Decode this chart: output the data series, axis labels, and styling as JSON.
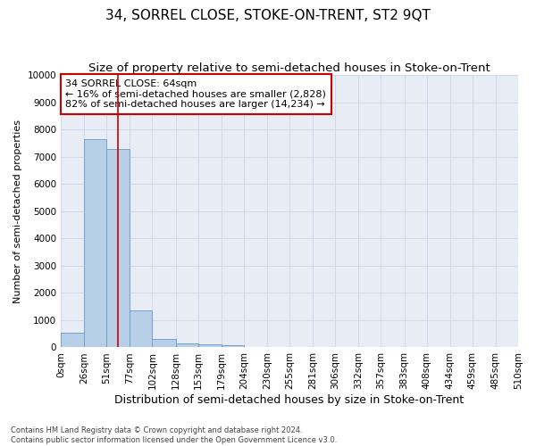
{
  "title": "34, SORREL CLOSE, STOKE-ON-TRENT, ST2 9QT",
  "subtitle": "Size of property relative to semi-detached houses in Stoke-on-Trent",
  "xlabel": "Distribution of semi-detached houses by size in Stoke-on-Trent",
  "ylabel": "Number of semi-detached properties",
  "footer1": "Contains HM Land Registry data © Crown copyright and database right 2024.",
  "footer2": "Contains public sector information licensed under the Open Government Licence v3.0.",
  "bin_labels": [
    "0sqm",
    "26sqm",
    "51sqm",
    "77sqm",
    "102sqm",
    "128sqm",
    "153sqm",
    "179sqm",
    "204sqm",
    "230sqm",
    "255sqm",
    "281sqm",
    "306sqm",
    "332sqm",
    "357sqm",
    "383sqm",
    "408sqm",
    "434sqm",
    "459sqm",
    "485sqm",
    "510sqm"
  ],
  "bar_values": [
    540,
    7650,
    7300,
    1350,
    320,
    160,
    105,
    90,
    0,
    0,
    0,
    0,
    0,
    0,
    0,
    0,
    0,
    0,
    0,
    0
  ],
  "bar_color": "#b8cfe8",
  "bar_edgecolor": "#6699cc",
  "grid_color": "#ccd5e8",
  "background_color": "#e8edf5",
  "property_line_x": 64,
  "red_line_color": "#cc0000",
  "annotation_line1": "34 SORREL CLOSE: 64sqm",
  "annotation_line2": "← 16% of semi-detached houses are smaller (2,828)",
  "annotation_line3": "82% of semi-detached houses are larger (14,234) →",
  "annotation_box_color": "#ffffff",
  "annotation_box_edgecolor": "#cc0000",
  "ylim": [
    0,
    10000
  ],
  "yticks": [
    0,
    1000,
    2000,
    3000,
    4000,
    5000,
    6000,
    7000,
    8000,
    9000,
    10000
  ],
  "bin_edges": [
    0,
    26,
    51,
    77,
    102,
    128,
    153,
    179,
    204,
    230,
    255,
    281,
    306,
    332,
    357,
    383,
    408,
    434,
    459,
    485,
    510
  ],
  "title_fontsize": 11,
  "subtitle_fontsize": 9.5,
  "xlabel_fontsize": 9,
  "ylabel_fontsize": 8,
  "tick_fontsize": 7.5,
  "annotation_fontsize": 8,
  "footer_fontsize": 6
}
